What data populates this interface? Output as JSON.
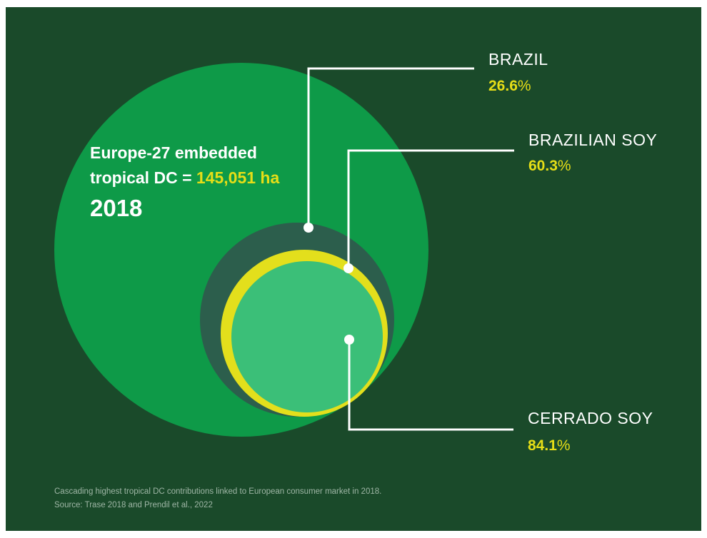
{
  "colors": {
    "background": "#1a4a2a",
    "europe_circle": "#0e9a48",
    "brazil_circle": "#2c5e4c",
    "brazilian_soy_circle": "#e3df1c",
    "cerrado_soy_circle": "#3bbf78",
    "highlight": "#e6de17",
    "connector": "#ffffff"
  },
  "intro": {
    "line1": "Europe-27 embedded",
    "line2_prefix": "tropical DC =",
    "line2_value": "145,051 ha",
    "year": "2018"
  },
  "items": [
    {
      "label": "BRAZIL",
      "value": "26.6",
      "unit": "%"
    },
    {
      "label": "BRAZILIAN SOY",
      "value": "60.3",
      "unit": "%"
    },
    {
      "label": "CERRADO SOY",
      "value": "84.1",
      "unit": "%"
    }
  ],
  "caption": {
    "line1": "Cascading highest tropical DC contributions linked to European consumer market in 2018.",
    "line2": "Source: Trase 2018 and Prendil et al., 2022"
  }
}
